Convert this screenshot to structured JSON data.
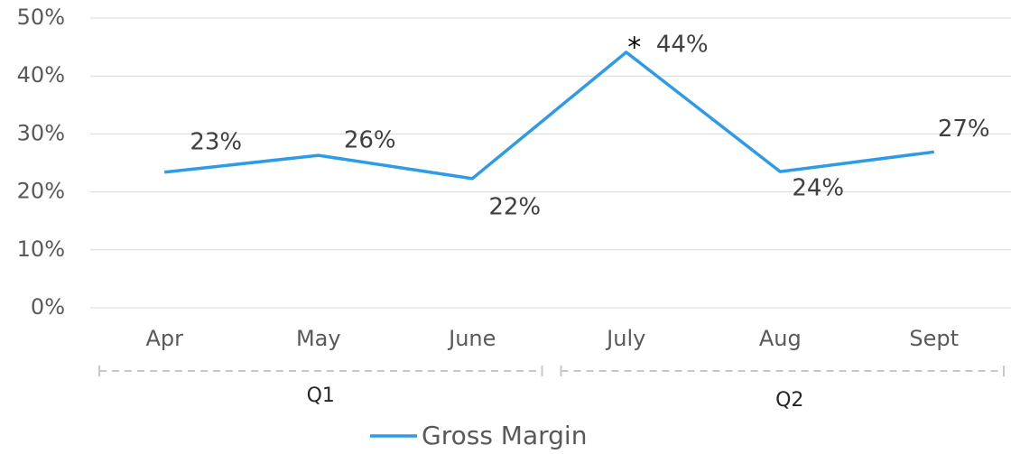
{
  "chart_data": {
    "type": "line",
    "categories": [
      "Apr",
      "May",
      "June",
      "July",
      "Aug",
      "Sept"
    ],
    "series": [
      {
        "name": "Gross Margin",
        "color": "#2e9be6",
        "values": [
          23.4,
          26.3,
          22.3,
          44.1,
          23.5,
          26.9
        ],
        "value_labels": [
          "23%",
          "26%",
          "22%",
          "44%",
          "24%",
          "27%"
        ]
      }
    ],
    "ylim": [
      0,
      50
    ],
    "yticks": [
      {
        "value": 0,
        "label": "0%"
      },
      {
        "value": 10,
        "label": "10%"
      },
      {
        "value": 20,
        "label": "20%"
      },
      {
        "value": 30,
        "label": "30%"
      },
      {
        "value": 40,
        "label": "40%"
      },
      {
        "value": 50,
        "label": "50%"
      }
    ],
    "grid": true,
    "groups": [
      "Q1",
      "Q2"
    ],
    "annotations": [
      "*"
    ],
    "legend": "bottom"
  }
}
